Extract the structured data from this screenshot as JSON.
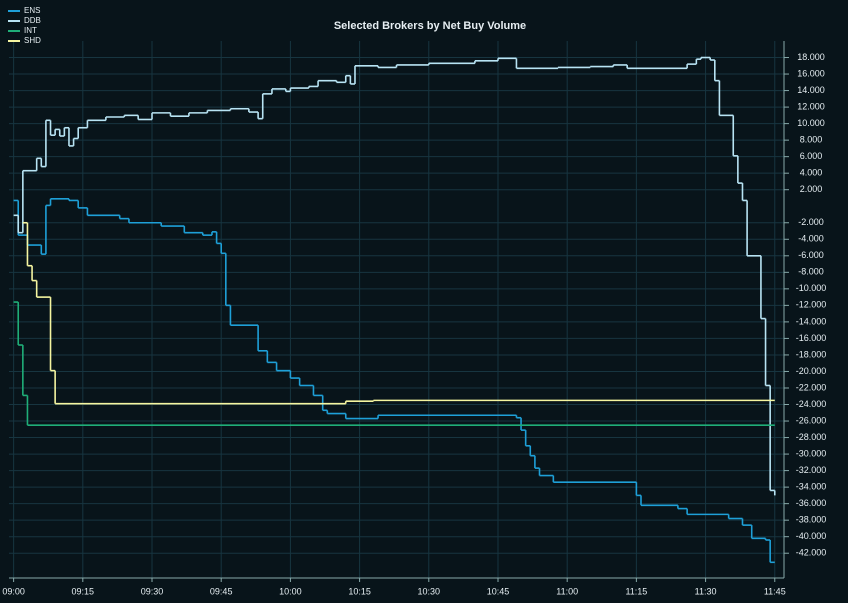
{
  "chart_data": {
    "type": "step-line",
    "title": "Selected Brokers by Net Buy Volume",
    "xlim": [
      "08:59",
      "11:47"
    ],
    "xticks": [
      "09:00",
      "09:15",
      "09:30",
      "09:45",
      "10:00",
      "10:15",
      "10:30",
      "10:45",
      "11:00",
      "11:15",
      "11:30",
      "11:45"
    ],
    "ylim": [
      -45000,
      20000
    ],
    "yticks": [
      {
        "value": 18000,
        "label": "18.000"
      },
      {
        "value": 16000,
        "label": "16.000"
      },
      {
        "value": 14000,
        "label": "14.000"
      },
      {
        "value": 12000,
        "label": "12.000"
      },
      {
        "value": 10000,
        "label": "10.000"
      },
      {
        "value": 8000,
        "label": "8.000"
      },
      {
        "value": 6000,
        "label": "6.000"
      },
      {
        "value": 4000,
        "label": "4.000"
      },
      {
        "value": 2000,
        "label": "2.000"
      },
      {
        "value": -2000,
        "label": "-2.000"
      },
      {
        "value": -4000,
        "label": "-4.000"
      },
      {
        "value": -6000,
        "label": "-6.000"
      },
      {
        "value": -8000,
        "label": "-8.000"
      },
      {
        "value": -10000,
        "label": "-10.000"
      },
      {
        "value": -12000,
        "label": "-12.000"
      },
      {
        "value": -14000,
        "label": "-14.000"
      },
      {
        "value": -16000,
        "label": "-16.000"
      },
      {
        "value": -18000,
        "label": "-18.000"
      },
      {
        "value": -20000,
        "label": "-20.000"
      },
      {
        "value": -22000,
        "label": "-22.000"
      },
      {
        "value": -24000,
        "label": "-24.000"
      },
      {
        "value": -26000,
        "label": "-26.000"
      },
      {
        "value": -28000,
        "label": "-28.000"
      },
      {
        "value": -30000,
        "label": "-30.000"
      },
      {
        "value": -32000,
        "label": "-32.000"
      },
      {
        "value": -34000,
        "label": "-34.000"
      },
      {
        "value": -36000,
        "label": "-36.000"
      },
      {
        "value": -38000,
        "label": "-38.000"
      },
      {
        "value": -40000,
        "label": "-40.000"
      },
      {
        "value": -42000,
        "label": "-42.000"
      }
    ],
    "grid": true,
    "legend": "top-left",
    "series": [
      {
        "name": "ENS",
        "color": "#1ea0d8",
        "x": [
          "09:00",
          "09:01",
          "09:03",
          "09:06",
          "09:07",
          "09:08",
          "09:12",
          "09:14",
          "09:16",
          "09:23",
          "09:25",
          "09:32",
          "09:37",
          "09:41",
          "09:43",
          "09:44",
          "09:45",
          "09:46",
          "09:47",
          "09:53",
          "09:55",
          "09:57",
          "10:00",
          "10:02",
          "10:05",
          "10:07",
          "10:08",
          "10:12",
          "10:19",
          "10:49",
          "10:50",
          "10:51",
          "10:52",
          "10:53",
          "10:54",
          "10:57",
          "11:15",
          "11:16",
          "11:24",
          "11:26",
          "11:35",
          "11:38",
          "11:40",
          "11:43",
          "11:44",
          "11:45"
        ],
        "values": [
          700,
          -3500,
          -4700,
          -5800,
          100,
          900,
          700,
          -200,
          -1100,
          -1500,
          -2000,
          -2400,
          -3200,
          -3500,
          -3100,
          -4500,
          -5700,
          -12000,
          -14400,
          -17500,
          -18900,
          -19900,
          -20800,
          -21700,
          -22900,
          -24700,
          -25100,
          -25700,
          -25300,
          -25600,
          -27100,
          -29000,
          -30200,
          -31700,
          -32600,
          -33400,
          -35000,
          -36200,
          -36600,
          -37300,
          -37800,
          -38600,
          -40200,
          -40400,
          -43100,
          -43100
        ]
      },
      {
        "name": "DDB",
        "color": "#b8e4f4",
        "x": [
          "09:00",
          "09:01",
          "09:02",
          "09:05",
          "09:06",
          "09:07",
          "09:08",
          "09:09",
          "09:10",
          "09:11",
          "09:12",
          "09:13",
          "09:14",
          "09:16",
          "09:20",
          "09:24",
          "09:27",
          "09:30",
          "09:34",
          "09:38",
          "09:42",
          "09:47",
          "09:51",
          "09:53",
          "09:54",
          "09:56",
          "09:59",
          "10:00",
          "10:04",
          "10:06",
          "10:10",
          "10:12",
          "10:13",
          "10:14",
          "10:19",
          "10:23",
          "10:30",
          "10:40",
          "10:45",
          "10:49",
          "10:58",
          "11:05",
          "11:10",
          "11:13",
          "11:26",
          "11:28",
          "11:29",
          "11:31",
          "11:32",
          "11:33",
          "11:36",
          "11:37",
          "11:38",
          "11:39",
          "11:42",
          "11:43",
          "11:44",
          "11:45"
        ],
        "values": [
          -1100,
          -3200,
          4300,
          5800,
          4800,
          10400,
          8600,
          9300,
          8500,
          9500,
          7300,
          8200,
          9500,
          10400,
          10800,
          11000,
          10500,
          11300,
          10900,
          11300,
          11600,
          11800,
          11400,
          10600,
          13600,
          14200,
          13900,
          14300,
          14500,
          15200,
          15000,
          15800,
          14800,
          17000,
          16800,
          17100,
          17300,
          17600,
          17900,
          16700,
          16800,
          16900,
          17100,
          16700,
          17200,
          17800,
          18000,
          17700,
          15200,
          11000,
          6100,
          2800,
          700,
          -6000,
          -13600,
          -21700,
          -34400,
          -35000
        ]
      },
      {
        "name": "INT",
        "color": "#1fae78",
        "x": [
          "09:00",
          "09:01",
          "09:02",
          "09:03",
          "11:45"
        ],
        "values": [
          -11600,
          -16800,
          -22900,
          -26500,
          -26500
        ]
      },
      {
        "name": "SHD",
        "color": "#f5f5a0",
        "x": [
          "09:02",
          "09:03",
          "09:04",
          "09:05",
          "09:08",
          "09:09",
          "10:12",
          "10:18",
          "11:45"
        ],
        "values": [
          -2000,
          -7200,
          -9000,
          -11000,
          -19900,
          -23900,
          -23600,
          -23500,
          -23500
        ]
      }
    ]
  }
}
